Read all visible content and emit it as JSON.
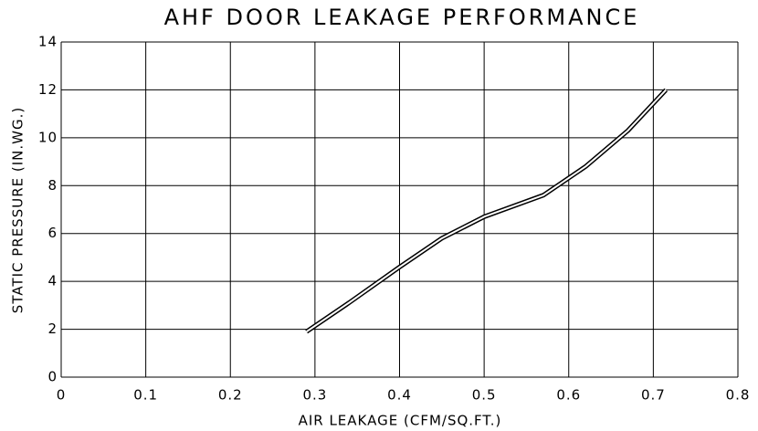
{
  "chart_data": {
    "type": "line",
    "title": "AHF DOOR LEAKAGE PERFORMANCE",
    "x_label": "AIR LEAKAGE (CFM/SQ.FT.)",
    "y_label": "STATIC PRESSURE (IN.WG.)",
    "x": [
      0.29,
      0.34,
      0.4,
      0.45,
      0.5,
      0.57,
      0.62,
      0.67,
      0.715
    ],
    "series": [
      {
        "name": "AHF door",
        "color": "#000000",
        "values": [
          1.9,
          3.1,
          4.6,
          5.8,
          6.7,
          7.6,
          8.8,
          10.3,
          12.0
        ]
      }
    ],
    "xlim": [
      0,
      0.8
    ],
    "xticks": [
      0,
      0.1,
      0.2,
      0.3,
      0.4,
      0.5,
      0.6,
      0.7,
      0.8
    ],
    "ylim": [
      0,
      14
    ],
    "yticks": [
      0,
      2,
      4,
      6,
      8,
      10,
      12,
      14
    ],
    "grid": true
  }
}
